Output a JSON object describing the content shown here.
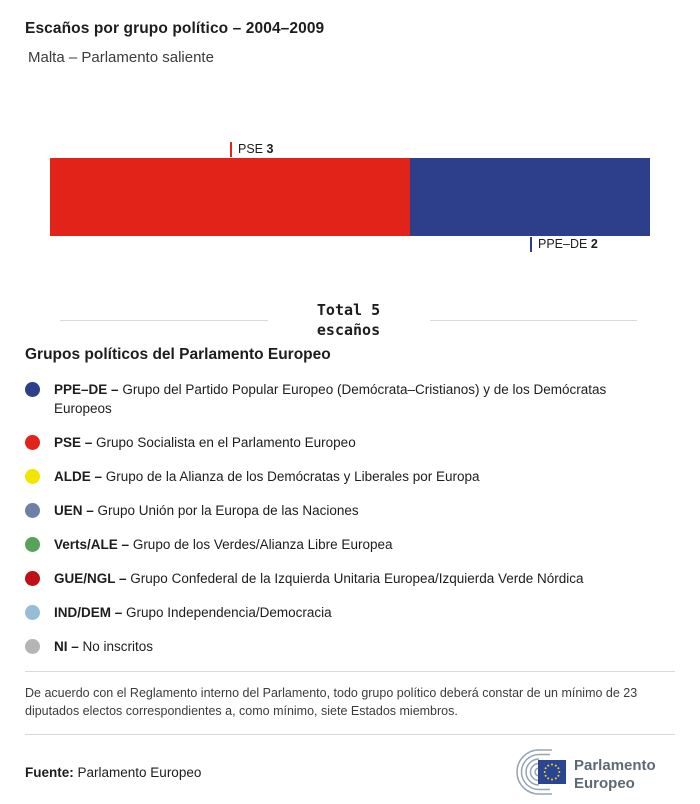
{
  "header": {
    "title": "Escaños por grupo político – 2004–2009",
    "subtitle": "Malta – Parlamento saliente"
  },
  "chart_data": {
    "type": "bar",
    "orientation": "horizontal_stacked",
    "title": "Escaños por grupo político – 2004–2009",
    "subtitle": "Malta – Parlamento saliente",
    "units": "escaños",
    "total_seats": 5,
    "total_line1": "Total 5",
    "total_line2": "escaños",
    "series": [
      {
        "name": "PSE",
        "value": 3,
        "color": "#e2231a",
        "label_position": "above"
      },
      {
        "name": "PPE–DE",
        "value": 2,
        "color": "#2d3e8b",
        "label_position": "below"
      }
    ]
  },
  "legend": {
    "heading": "Grupos políticos del Parlamento Europeo",
    "items": [
      {
        "label": "PPE–DE –",
        "description": "Grupo del Partido Popular Europeo (Demócrata–Cristianos) y de los Demócratas Europeos",
        "color": "#2d3e8b"
      },
      {
        "label": "PSE –",
        "description": "Grupo Socialista en el Parlamento Europeo",
        "color": "#e2231a"
      },
      {
        "label": "ALDE –",
        "description": "Grupo de la Alianza de los Demócratas y Liberales por Europa",
        "color": "#f2e500"
      },
      {
        "label": "UEN –",
        "description": "Grupo Unión por la Europa de las Naciones",
        "color": "#6c80a9"
      },
      {
        "label": "Verts/ALE –",
        "description": "Grupo de los Verdes/Alianza Libre Europea",
        "color": "#55a457"
      },
      {
        "label": "GUE/NGL –",
        "description": "Grupo Confederal de la Izquierda Unitaria Europea/Izquierda Verde Nórdica",
        "color": "#c00f16"
      },
      {
        "label": "IND/DEM –",
        "description": "Grupo Independencia/Democracia",
        "color": "#95bdd6"
      },
      {
        "label": "NI –",
        "description": "No inscritos",
        "color": "#b5b5b5"
      }
    ]
  },
  "footer": {
    "note": "De acuerdo con el Reglamento interno del Parlamento, todo grupo político deberá constar de un mínimo de 23 diputados electos correspondientes a, como mínimo, siete Estados miembros.",
    "source_label": "Fuente:",
    "source_value": "Parlamento Europeo",
    "logo": {
      "line1": "Parlamento",
      "line2": "Europeo"
    }
  },
  "colors": {
    "rule": "#d9d9d9",
    "text_primary": "#1d1d1b",
    "text_secondary": "#3c3c3b",
    "logo_gray": "#97a5b1",
    "logo_text": "#5d6974",
    "eu_flag_blue": "#2a4594",
    "eu_star_yellow": "#f7d117"
  }
}
